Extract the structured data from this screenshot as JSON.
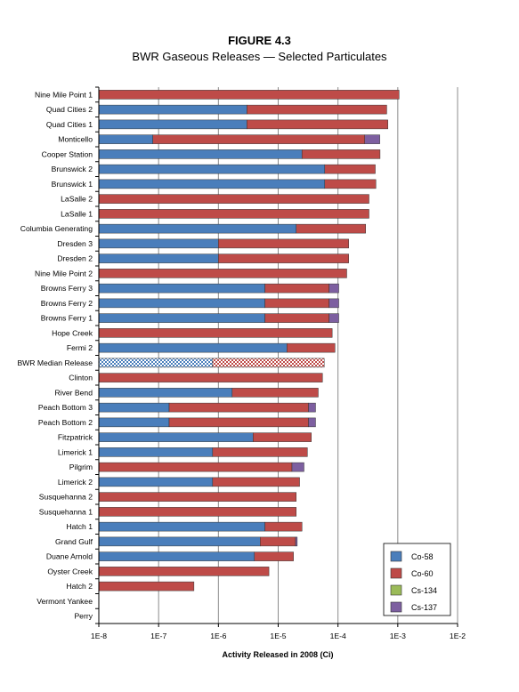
{
  "chart_data": {
    "type": "bar",
    "orientation": "horizontal",
    "stacked": true,
    "title": "FIGURE 4.3",
    "subtitle": "BWR Gaseous Releases — Selected Particulates",
    "xlabel": "Activity Released in 2008 (Ci)",
    "x_scale": "log",
    "xlim": [
      1e-08,
      0.01
    ],
    "x_ticks": [
      1e-08,
      1e-07,
      1e-06,
      1e-05,
      0.0001,
      0.001,
      0.01
    ],
    "x_tick_labels": [
      "1E-8",
      "1E-7",
      "1E-6",
      "1E-5",
      "1E-4",
      "1E-3",
      "1E-2"
    ],
    "grid": "vertical gridlines at each decade",
    "legend_position": "bottom-right",
    "categories": [
      "Nine Mile Point 1",
      "Quad Cities 2",
      "Quad Cities 1",
      "Monticello",
      "Cooper Station",
      "Brunswick 2",
      "Brunswick 1",
      "LaSalle 2",
      "LaSalle 1",
      "Columbia Generating",
      "Dresden 3",
      "Dresden 2",
      "Nine Mile Point 2",
      "Browns Ferry 3",
      "Browns Ferry 2",
      "Browns Ferry 1",
      "Hope Creek",
      "Fermi 2",
      "BWR Median Release",
      "Clinton",
      "River Bend",
      "Peach Bottom 3",
      "Peach Bottom 2",
      "Fitzpatrick",
      "Limerick 1",
      "Pilgrim",
      "Limerick 2",
      "Susquehanna 2",
      "Susquehanna 1",
      "Hatch 1",
      "Grand Gulf",
      "Duane Arnold",
      "Oyster Creek",
      "Hatch 2",
      "Vermont Yankee",
      "Perry"
    ],
    "highlighted_category": "BWR Median Release",
    "series": [
      {
        "name": "Co-58",
        "color": "#4a7ebb",
        "values": [
          0,
          3e-06,
          3e-06,
          8e-08,
          2.5e-05,
          6e-05,
          6e-05,
          0,
          0,
          2e-05,
          1e-06,
          1e-06,
          0,
          6e-06,
          6e-06,
          6e-06,
          0,
          1.4e-05,
          8e-07,
          0,
          1.7e-06,
          1.5e-07,
          1.5e-07,
          3.8e-06,
          8e-07,
          0,
          8e-07,
          0,
          0,
          6e-06,
          5e-06,
          4e-06,
          0,
          0,
          0,
          0
        ]
      },
      {
        "name": "Co-60",
        "color": "#be4b48",
        "values": [
          0.00105,
          0.00065,
          0.00068,
          0.00028,
          0.00048,
          0.00036,
          0.00037,
          0.00033,
          0.00033,
          0.00027,
          0.00015,
          0.00015,
          0.00014,
          6.5e-05,
          6.5e-05,
          6.5e-05,
          8e-05,
          7.5e-05,
          5.8e-05,
          5.5e-05,
          4.5e-05,
          3.2e-05,
          3.2e-05,
          3.2e-05,
          3e-05,
          1.7e-05,
          2.2e-05,
          2e-05,
          2e-05,
          1.9e-05,
          1.45e-05,
          1.4e-05,
          7e-06,
          3.9e-07,
          0,
          0
        ]
      },
      {
        "name": "Cs-134",
        "color": "#9bbb59",
        "values": [
          0,
          0,
          0,
          0,
          0,
          0,
          0,
          0,
          0,
          0,
          0,
          0,
          0,
          0,
          0,
          0,
          0,
          0,
          0,
          0,
          0,
          0,
          0,
          0,
          0,
          0,
          0,
          0,
          0,
          0,
          0,
          0,
          0,
          0,
          0,
          0
        ]
      },
      {
        "name": "Cs-137",
        "color": "#7d5fa0",
        "values": [
          0,
          0,
          0,
          0.00022,
          0,
          0,
          0,
          0,
          0,
          0,
          0,
          0,
          0,
          3.2e-05,
          3.2e-05,
          3.2e-05,
          0,
          0,
          0,
          0,
          0,
          1e-05,
          1e-05,
          0,
          0,
          1e-05,
          0,
          0,
          0,
          0,
          1.3e-06,
          0,
          0,
          0,
          0,
          0
        ]
      }
    ]
  }
}
